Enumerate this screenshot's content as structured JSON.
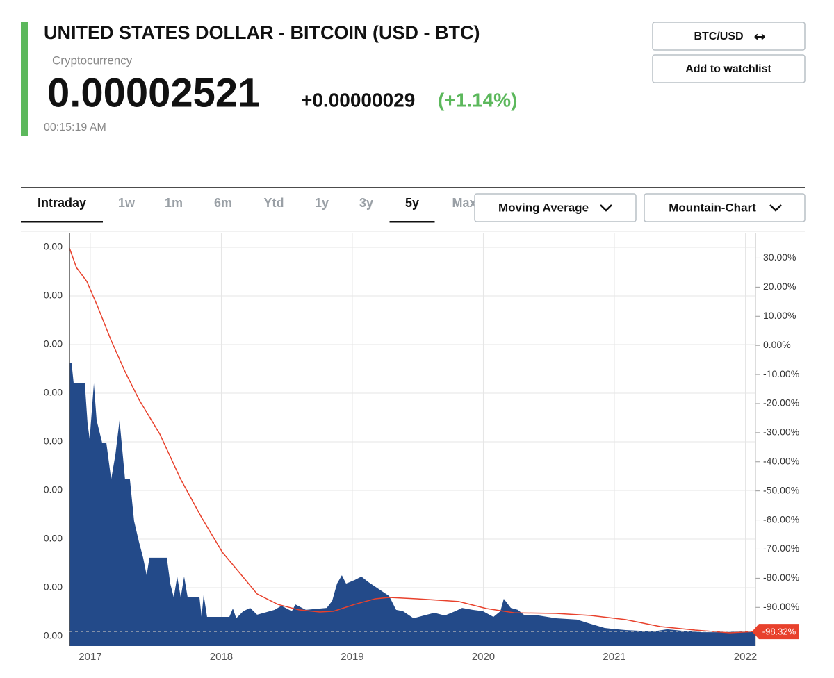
{
  "header": {
    "title": "UNITED STATES DOLLAR - BITCOIN (USD - BTC)",
    "category": "Cryptocurrency",
    "price": "0.00002521",
    "change": "+0.00000029",
    "change_percent": "(+1.14%)",
    "time": "00:15:19 AM"
  },
  "buttons": [
    "BTC/USD",
    "Add to watchlist"
  ],
  "tabs": {
    "items": [
      "Intraday",
      "1w",
      "1m",
      "6m",
      "Ytd",
      "1y",
      "3y",
      "5y",
      "Max"
    ],
    "active": [
      0,
      7
    ]
  },
  "dropdowns": [
    "Moving Average",
    "Mountain-Chart"
  ],
  "chart_data": {
    "type": "area",
    "xlim": [
      2016.841,
      2022.077
    ],
    "xticks": [
      2017,
      2018,
      2019,
      2020,
      2021,
      2022
    ],
    "ylim": [
      -5e-05,
      0.002075
    ],
    "yticks": [
      {
        "value": 0,
        "label": "0.00"
      },
      {
        "value": 0.00025,
        "label": "0.00"
      },
      {
        "value": 0.0005,
        "label": "0.00"
      },
      {
        "value": 0.00075,
        "label": "0.00"
      },
      {
        "value": 0.001,
        "label": "0.00"
      },
      {
        "value": 0.00125,
        "label": "0.00"
      },
      {
        "value": 0.0015,
        "label": "0.00"
      },
      {
        "value": 0.00175,
        "label": "0.00"
      },
      {
        "value": 0.002,
        "label": "0.00"
      }
    ],
    "y2lim": [
      -103.3,
      38.7
    ],
    "y2ticks": [
      {
        "value": 30,
        "label": "30.00%"
      },
      {
        "value": 20,
        "label": "20.00%"
      },
      {
        "value": 10,
        "label": "10.00%"
      },
      {
        "value": 0,
        "label": "0.00%"
      },
      {
        "value": -10,
        "label": "-10.00%"
      },
      {
        "value": -20,
        "label": "-20.00%"
      },
      {
        "value": -30,
        "label": "-30.00%"
      },
      {
        "value": -40,
        "label": "-40.00%"
      },
      {
        "value": -50,
        "label": "-50.00%"
      },
      {
        "value": -60,
        "label": "-60.00%"
      },
      {
        "value": -70,
        "label": "-70.00%"
      },
      {
        "value": -80,
        "label": "-80.00%"
      },
      {
        "value": -90,
        "label": "-90.00%"
      }
    ],
    "grid": true,
    "series": [
      {
        "type": "area",
        "color": "#234a89",
        "x": [
          2016.841,
          2016.857,
          2016.873,
          2016.958,
          2016.979,
          2016.995,
          2017.027,
          2017.048,
          2017.09,
          2017.122,
          2017.159,
          2017.191,
          2017.223,
          2017.265,
          2017.302,
          2017.334,
          2017.371,
          2017.403,
          2017.43,
          2017.451,
          2017.584,
          2017.61,
          2017.637,
          2017.663,
          2017.69,
          2017.716,
          2017.743,
          2017.833,
          2017.849,
          2017.865,
          2017.891,
          2018.061,
          2018.088,
          2018.114,
          2018.167,
          2018.22,
          2018.273,
          2018.326,
          2018.406,
          2018.459,
          2018.538,
          2018.565,
          2018.645,
          2018.804,
          2018.846,
          2018.883,
          2018.92,
          2018.952,
          2019.016,
          2019.069,
          2019.122,
          2019.202,
          2019.281,
          2019.334,
          2019.387,
          2019.467,
          2019.546,
          2019.626,
          2019.706,
          2019.785,
          2019.838,
          2019.918,
          2019.997,
          2020.077,
          2020.13,
          2020.156,
          2020.21,
          2020.263,
          2020.316,
          2020.422,
          2020.554,
          2020.714,
          2020.82,
          2020.926,
          2020.979,
          2021.085,
          2021.297,
          2021.403,
          2021.509,
          2021.668,
          2021.828,
          2021.987,
          2022.077
        ],
        "values": [
          0.001404,
          0.001404,
          0.0013,
          0.0013,
          0.001093,
          0.001014,
          0.0013,
          0.001111,
          0.000996,
          0.000996,
          0.000807,
          0.000932,
          0.001111,
          0.000807,
          0.000807,
          0.000593,
          0.000486,
          0.000404,
          0.000314,
          0.000404,
          0.000404,
          0.000271,
          0.0002,
          0.000307,
          0.0002,
          0.000307,
          0.0002,
          0.0002,
          0.0001,
          0.000214,
          0.0001,
          0.0001,
          0.000143,
          9.3e-05,
          0.000129,
          0.000146,
          0.000111,
          0.000121,
          0.000136,
          0.000157,
          0.000129,
          0.000164,
          0.000136,
          0.000146,
          0.000182,
          0.000271,
          0.000314,
          0.000271,
          0.000289,
          0.000307,
          0.000279,
          0.000243,
          0.000207,
          0.000136,
          0.000129,
          9.3e-05,
          0.000107,
          0.000121,
          0.000107,
          0.000129,
          0.000146,
          0.000136,
          0.000129,
          0.0001,
          0.000129,
          0.000193,
          0.000146,
          0.000136,
          0.000107,
          0.000107,
          9.3e-05,
          8.6e-05,
          6.4e-05,
          4.3e-05,
          3.9e-05,
          3.2e-05,
          2.5e-05,
          3.6e-05,
          2.9e-05,
          2.1e-05,
          2.1e-05,
          2.5e-05,
          2.5e-05
        ]
      },
      {
        "type": "line",
        "color": "#e8412c",
        "x": [
          2016.841,
          2016.894,
          2016.973,
          2017.053,
          2017.159,
          2017.265,
          2017.371,
          2017.531,
          2017.69,
          2017.849,
          2018.008,
          2018.141,
          2018.273,
          2018.432,
          2018.592,
          2018.751,
          2018.857,
          2019.016,
          2019.175,
          2019.281,
          2019.493,
          2019.812,
          2020.024,
          2020.236,
          2020.554,
          2020.82,
          2021.085,
          2021.35,
          2021.615,
          2021.881,
          2022.077
        ],
        "values": [
          0.001996,
          0.001896,
          0.001825,
          0.0017,
          0.001521,
          0.001361,
          0.001218,
          0.001039,
          0.000807,
          0.000611,
          0.000432,
          0.000325,
          0.000218,
          0.000164,
          0.000136,
          0.000125,
          0.000129,
          0.000164,
          0.000193,
          0.0002,
          0.000193,
          0.000179,
          0.000143,
          0.000121,
          0.000118,
          0.000107,
          8.6e-05,
          5e-05,
          3.2e-05,
          1.8e-05,
          2.5e-05
        ]
      }
    ],
    "last_change": {
      "value": -98.32,
      "label": "-98.32%",
      "axis": "y2",
      "color": "#e8412c"
    }
  }
}
